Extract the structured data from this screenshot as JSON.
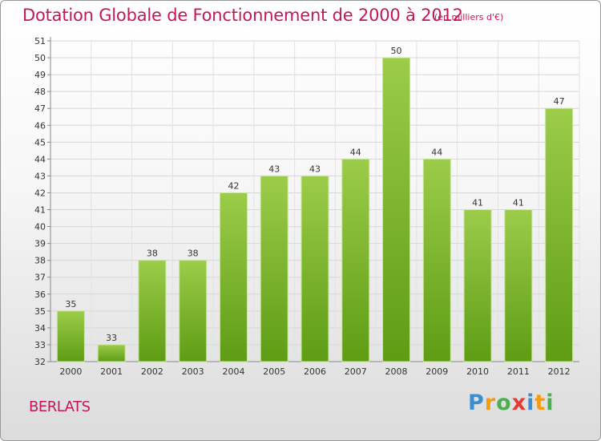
{
  "title": "Dotation Globale de Fonctionnement de 2000 à 2012",
  "subtitle": "(en milliers d'€)",
  "commune": "BERLATS",
  "logo": {
    "letters": [
      "P",
      "r",
      "o",
      "x",
      "i",
      "t",
      "i"
    ],
    "colors": [
      "#3a8fd0",
      "#f39c12",
      "#4caf50",
      "#e53935",
      "#3a8fd0",
      "#f39c12",
      "#4caf50"
    ]
  },
  "chart_data": {
    "type": "bar",
    "categories": [
      "2000",
      "2001",
      "2002",
      "2003",
      "2004",
      "2005",
      "2006",
      "2007",
      "2008",
      "2009",
      "2010",
      "2011",
      "2012"
    ],
    "values": [
      35,
      33,
      38,
      38,
      42,
      43,
      43,
      44,
      50,
      44,
      41,
      41,
      47
    ],
    "data_labels": [
      "35",
      "33",
      "38",
      "38",
      "42",
      "43",
      "43",
      "44",
      "50",
      "44",
      "41",
      "41",
      "47"
    ],
    "ylim": [
      32,
      51
    ],
    "yticks": [
      32,
      33,
      34,
      35,
      36,
      37,
      38,
      39,
      40,
      41,
      42,
      43,
      44,
      45,
      46,
      47,
      48,
      49,
      50,
      51
    ],
    "grid": true,
    "bar_color_top": "#9ccc4a",
    "bar_color_bottom": "#5e9c14",
    "title_color": "#c2185b"
  }
}
